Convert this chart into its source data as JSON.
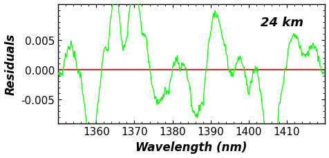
{
  "xlim": [
    1350,
    1420
  ],
  "ylim": [
    -0.009,
    0.011
  ],
  "yticks": [
    -0.005,
    0.0,
    0.005
  ],
  "xticks": [
    1360,
    1370,
    1380,
    1390,
    1400,
    1410
  ],
  "xlabel": "Wavelength (nm)",
  "ylabel": "Residuals",
  "annotation": "24 km",
  "line_color": "#00FF00",
  "hline_color": "#CC0000",
  "bg_color": "#ffffff",
  "label_fontsize": 12,
  "tick_fontsize": 11,
  "annotation_fontsize": 13
}
